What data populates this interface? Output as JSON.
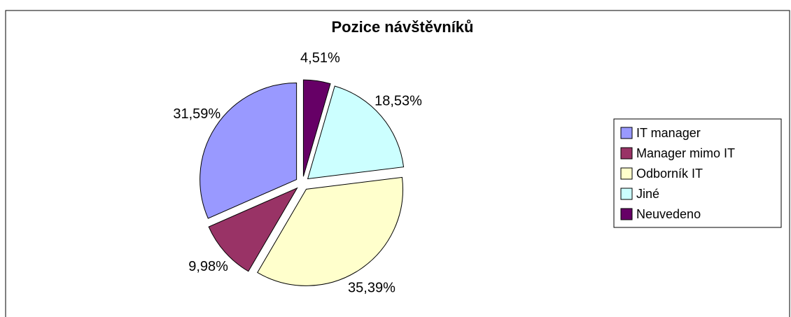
{
  "chart_data": {
    "type": "pie",
    "title": "Pozice návštěvníků",
    "categories": [
      "IT manager",
      "Manager mimo IT",
      "Odborník IT",
      "Jiné",
      "Neuvedeno"
    ],
    "values": [
      31.59,
      9.98,
      35.39,
      18.53,
      4.51
    ],
    "value_labels": [
      "31,59%",
      "9,98%",
      "35,39%",
      "18,53%",
      "4,51%"
    ],
    "colors": [
      "#9999ff",
      "#993366",
      "#ffffcc",
      "#ccffff",
      "#660066"
    ],
    "legend": "right"
  }
}
